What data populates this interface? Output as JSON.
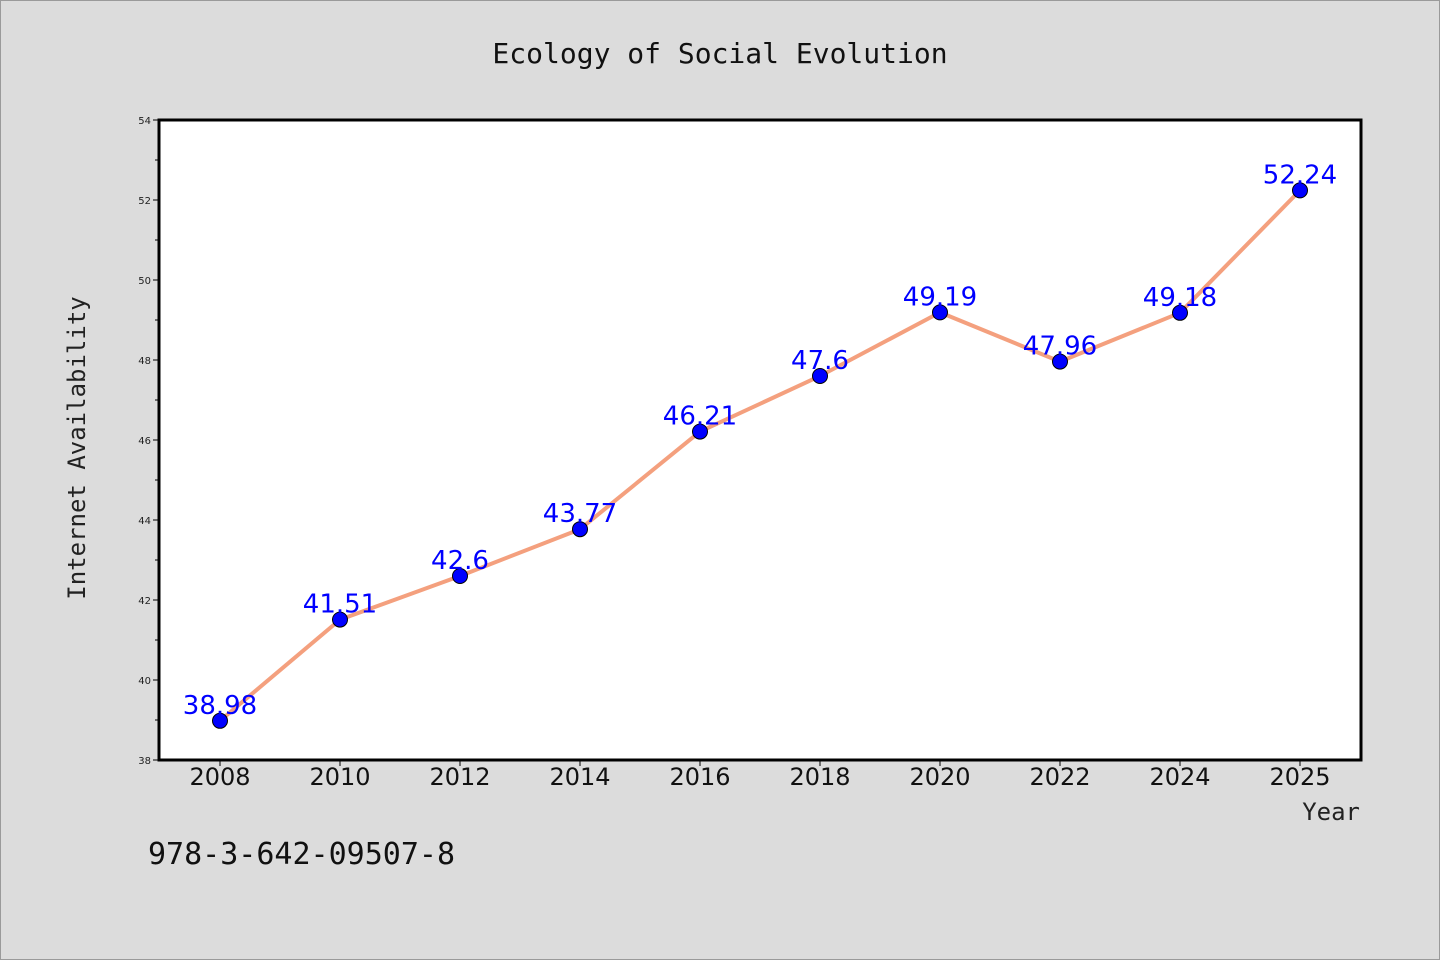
{
  "chart_data": {
    "type": "line",
    "title": "Ecology of Social Evolution",
    "xlabel": "Year",
    "ylabel": "Internet Availability",
    "categories": [
      "2008",
      "2010",
      "2012",
      "2014",
      "2016",
      "2018",
      "2020",
      "2022",
      "2024",
      "2025"
    ],
    "series": [
      {
        "values": [
          38.98,
          41.51,
          42.6,
          43.77,
          46.21,
          47.6,
          49.19,
          47.96,
          49.18,
          52.24
        ],
        "labels": [
          "38.98",
          "41.51",
          "42.6",
          "43.77",
          "46.21",
          "47.6",
          "49.19",
          "47.96",
          "49.18",
          "52.24"
        ]
      }
    ],
    "ylim": [
      38,
      54
    ],
    "yticks": [
      "38",
      "40",
      "42",
      "44",
      "46",
      "48",
      "50",
      "52",
      "54"
    ],
    "grid": false,
    "legend": "none",
    "line_color": "#f4a07e",
    "marker_color": "#0000ff",
    "label_color": "#0000ff",
    "background_color": "#dcdcdc",
    "plot_background": "#ffffff"
  },
  "footnote": "978-3-642-09507-8"
}
